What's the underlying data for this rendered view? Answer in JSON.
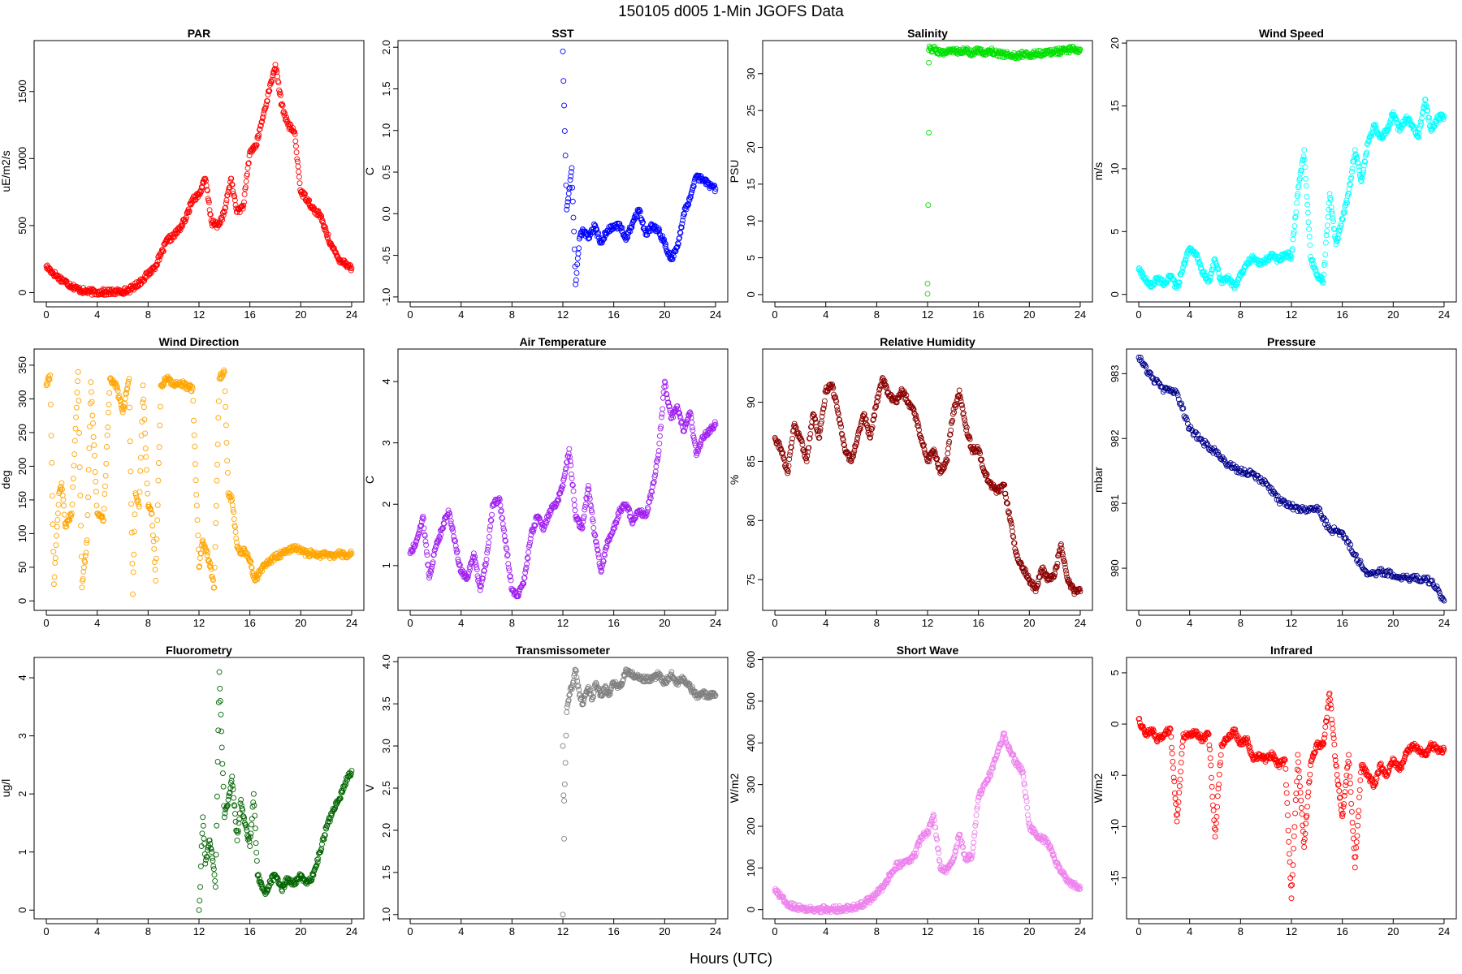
{
  "figure": {
    "title": "150105   d005   1-Min  JGOFS Data",
    "xlabel": "Hours (UTC)"
  },
  "chart_data": [
    {
      "type": "scatter",
      "title": "PAR",
      "ylabel": "uE/m2/s",
      "color": "#ff0000",
      "xlim": [
        -0.96,
        24.96
      ],
      "ylim": [
        -70,
        1880
      ],
      "x_ticks": [
        0,
        4,
        8,
        12,
        16,
        20,
        24
      ],
      "y_ticks": [
        0,
        500,
        1000,
        1500
      ],
      "x": [
        0,
        0.5,
        1,
        1.5,
        2,
        2.5,
        3,
        3.5,
        4,
        4.5,
        5,
        5.5,
        6,
        6.5,
        7,
        7.5,
        8,
        8.5,
        9,
        9.5,
        10,
        10.5,
        11,
        11.5,
        12,
        12.5,
        13,
        13.5,
        14,
        14.5,
        15,
        15.5,
        16,
        16.5,
        17,
        17.5,
        18,
        18.5,
        19,
        19.5,
        20,
        20.5,
        21,
        21.5,
        22,
        22.5,
        23,
        23.5,
        24
      ],
      "y": [
        195,
        150,
        110,
        80,
        50,
        25,
        10,
        5,
        3,
        3,
        3,
        5,
        10,
        20,
        50,
        90,
        140,
        190,
        280,
        390,
        420,
        480,
        560,
        700,
        730,
        850,
        520,
        500,
        600,
        850,
        600,
        650,
        1050,
        1100,
        1300,
        1500,
        1700,
        1400,
        1250,
        1200,
        750,
        700,
        620,
        580,
        450,
        330,
        250,
        220,
        180
      ]
    },
    {
      "type": "scatter",
      "title": "SST",
      "ylabel": "C",
      "color": "#0000ff",
      "xlim": [
        -0.96,
        24.96
      ],
      "ylim": [
        -1.06,
        2.08
      ],
      "x_ticks": [
        0,
        4,
        8,
        12,
        16,
        20,
        24
      ],
      "y_ticks": [
        -1.0,
        -0.5,
        0.0,
        0.5,
        1.0,
        1.5,
        2.0
      ],
      "x": [
        12.0,
        12.1,
        12.2,
        12.3,
        12.5,
        12.7,
        13.0,
        13.3,
        13.6,
        14.0,
        14.5,
        15.0,
        15.5,
        16.0,
        16.5,
        17.0,
        17.5,
        18.0,
        18.5,
        19.0,
        19.5,
        20.0,
        20.5,
        21.0,
        21.5,
        22.0,
        22.5,
        23.0,
        23.5,
        24.0
      ],
      "y": [
        1.95,
        1.3,
        0.7,
        0.05,
        0.3,
        0.55,
        -0.85,
        -0.3,
        -0.2,
        -0.3,
        -0.15,
        -0.35,
        -0.2,
        -0.15,
        -0.15,
        -0.3,
        -0.1,
        0.05,
        -0.25,
        -0.15,
        -0.2,
        -0.35,
        -0.55,
        -0.4,
        0.0,
        0.2,
        0.45,
        0.4,
        0.35,
        0.3
      ]
    },
    {
      "type": "scatter",
      "title": "Salinity",
      "ylabel": "PSU",
      "color": "#00e000",
      "xlim": [
        -0.96,
        24.96
      ],
      "ylim": [
        -1.0,
        34.5
      ],
      "x_ticks": [
        0,
        4,
        8,
        12,
        16,
        20,
        24
      ],
      "y_ticks": [
        0,
        5,
        10,
        15,
        20,
        25,
        30
      ],
      "x": [
        12.0,
        12.0,
        12.1,
        12.1,
        12.1,
        12.2,
        12.5,
        13,
        13.5,
        14,
        14.5,
        15,
        15.5,
        16,
        16.5,
        17,
        17.5,
        18,
        18.5,
        19,
        19.5,
        20,
        20.5,
        21,
        21.5,
        22,
        22.5,
        23,
        23.5,
        24
      ],
      "y": [
        0.1,
        1.5,
        22.0,
        31.5,
        33.2,
        33.4,
        33.3,
        33.0,
        32.8,
        33.2,
        32.9,
        33.3,
        32.7,
        33.2,
        32.9,
        33.1,
        32.8,
        32.6,
        32.5,
        32.5,
        32.6,
        32.6,
        32.7,
        32.8,
        32.9,
        33.0,
        33.1,
        33.2,
        33.3,
        33.3
      ]
    },
    {
      "type": "scatter",
      "title": "Wind Speed",
      "ylabel": "m/s",
      "color": "#00ffff",
      "xlim": [
        -0.96,
        24.96
      ],
      "ylim": [
        -0.6,
        20.2
      ],
      "x_ticks": [
        0,
        4,
        8,
        12,
        16,
        20,
        24
      ],
      "y_ticks": [
        0,
        5,
        10,
        15,
        20
      ],
      "x": [
        0,
        0.5,
        1,
        1.5,
        2,
        2.5,
        3,
        3.5,
        4,
        4.5,
        5,
        5.5,
        6,
        6.5,
        7,
        7.5,
        8,
        8.5,
        9,
        9.5,
        10,
        10.5,
        11,
        11.5,
        12,
        12.5,
        13,
        13.5,
        14,
        14.5,
        15,
        15.5,
        16,
        16.5,
        17,
        17.5,
        18,
        18.5,
        19,
        19.5,
        20,
        20.5,
        21,
        21.5,
        22,
        22.5,
        23,
        23.5,
        24
      ],
      "y": [
        2.0,
        1.2,
        0.6,
        1.3,
        0.8,
        1.5,
        0.5,
        2.2,
        3.7,
        3.2,
        1.8,
        1.0,
        2.8,
        0.9,
        1.3,
        0.6,
        1.5,
        2.5,
        3.0,
        2.4,
        2.7,
        3.1,
        2.7,
        3.2,
        3.0,
        8.0,
        11.5,
        3.0,
        1.5,
        1.0,
        8.0,
        4.0,
        6.0,
        8.0,
        11.5,
        9.0,
        12.0,
        13.5,
        12.5,
        13.0,
        14.5,
        13.0,
        14.0,
        13.5,
        12.5,
        15.5,
        13.0,
        14.0,
        14.2
      ]
    },
    {
      "type": "scatter",
      "title": "Wind Direction",
      "ylabel": "deg",
      "color": "#ffa500",
      "xlim": [
        -0.96,
        24.96
      ],
      "ylim": [
        -14,
        374
      ],
      "x_ticks": [
        0,
        4,
        8,
        12,
        16,
        20,
        24
      ],
      "y_ticks": [
        0,
        50,
        100,
        150,
        200,
        250,
        300,
        350
      ],
      "x": [
        0.0,
        0.3,
        0.6,
        1.0,
        1.2,
        1.5,
        2.0,
        2.5,
        2.8,
        3.2,
        3.5,
        4.0,
        4.5,
        5.0,
        5.5,
        6.0,
        6.5,
        6.8,
        7.0,
        7.3,
        7.6,
        8.0,
        8.3,
        8.6,
        9.0,
        9.5,
        10.0,
        10.5,
        11.0,
        11.5,
        12.0,
        12.3,
        12.8,
        13.2,
        13.6,
        14.0,
        14.3,
        14.6,
        15.0,
        15.3,
        15.6,
        16.0,
        16.4,
        16.8,
        17.2,
        17.6,
        18.0,
        18.5,
        19.0,
        19.5,
        20.0,
        20.5,
        21.0,
        21.5,
        22.0,
        22.5,
        23.0,
        23.5,
        24.0
      ],
      "y": [
        320,
        335,
        25,
        160,
        175,
        110,
        130,
        340,
        20,
        90,
        325,
        130,
        120,
        330,
        320,
        280,
        330,
        10,
        160,
        140,
        320,
        140,
        130,
        30,
        320,
        330,
        320,
        325,
        318,
        315,
        50,
        90,
        60,
        20,
        330,
        340,
        160,
        150,
        80,
        70,
        75,
        60,
        30,
        45,
        55,
        60,
        65,
        70,
        75,
        80,
        75,
        70,
        72,
        68,
        70,
        66,
        70,
        68,
        70
      ]
    },
    {
      "type": "scatter",
      "title": "Air Temperature",
      "ylabel": "C",
      "color": "#a020f0",
      "xlim": [
        -0.96,
        24.96
      ],
      "ylim": [
        0.27,
        4.53
      ],
      "x_ticks": [
        0,
        4,
        8,
        12,
        16,
        20,
        24
      ],
      "y_ticks": [
        1,
        2,
        3,
        4
      ],
      "x": [
        0,
        0.5,
        1,
        1.5,
        2,
        2.5,
        3,
        3.5,
        4,
        4.5,
        5,
        5.5,
        6,
        6.5,
        7,
        7.5,
        8,
        8.5,
        9,
        9.5,
        10,
        10.5,
        11,
        11.5,
        12,
        12.5,
        13,
        13.5,
        14,
        14.5,
        15,
        15.5,
        16,
        16.5,
        17,
        17.5,
        18,
        18.5,
        19,
        19.5,
        20,
        20.5,
        21,
        21.5,
        22,
        22.5,
        23,
        23.5,
        24
      ],
      "y": [
        1.2,
        1.4,
        1.8,
        0.8,
        1.3,
        1.6,
        1.9,
        1.4,
        0.9,
        0.8,
        1.2,
        0.6,
        1.1,
        2.0,
        2.1,
        1.4,
        0.6,
        0.5,
        0.8,
        1.5,
        1.8,
        1.6,
        1.9,
        2.0,
        2.3,
        2.9,
        1.8,
        1.6,
        2.3,
        1.5,
        0.9,
        1.4,
        1.6,
        1.9,
        2.0,
        1.7,
        1.9,
        1.8,
        2.2,
        2.8,
        4.0,
        3.4,
        3.6,
        3.2,
        3.5,
        2.8,
        3.1,
        3.2,
        3.3
      ]
    },
    {
      "type": "scatter",
      "title": "Relative Humidity",
      "ylabel": "%",
      "color": "#8b0000",
      "xlim": [
        -0.96,
        24.96
      ],
      "ylim": [
        72.4,
        94.5
      ],
      "x_ticks": [
        0,
        4,
        8,
        12,
        16,
        20,
        24
      ],
      "y_ticks": [
        75,
        80,
        85,
        90
      ],
      "x": [
        0,
        0.5,
        1,
        1.5,
        2,
        2.5,
        3,
        3.5,
        4,
        4.5,
        5,
        5.5,
        6,
        6.5,
        7,
        7.5,
        8,
        8.5,
        9,
        9.5,
        10,
        10.5,
        11,
        11.5,
        12,
        12.5,
        13,
        13.5,
        14,
        14.5,
        15,
        15.5,
        16,
        16.5,
        17,
        17.5,
        18,
        18.5,
        19,
        19.5,
        20,
        20.5,
        21,
        21.5,
        22,
        22.5,
        23,
        23.5,
        24
      ],
      "y": [
        87,
        86,
        84,
        88,
        87,
        85,
        89,
        87,
        91,
        91.5,
        89,
        86,
        85,
        87,
        89,
        87,
        90,
        92,
        90.5,
        90,
        91,
        90,
        89,
        87,
        85,
        86,
        84,
        85,
        89,
        91,
        88,
        86,
        86,
        84,
        83,
        82.5,
        83,
        80,
        77,
        76,
        75,
        74,
        76,
        75,
        75.5,
        78,
        75,
        74,
        74
      ]
    },
    {
      "type": "scatter",
      "title": "Pressure",
      "ylabel": "mbar",
      "color": "#00008b",
      "xlim": [
        -0.96,
        24.96
      ],
      "ylim": [
        979.35,
        983.38
      ],
      "x_ticks": [
        0,
        4,
        8,
        12,
        16,
        20,
        24
      ],
      "y_ticks": [
        980,
        981,
        982,
        983
      ],
      "x": [
        0,
        1,
        2,
        3,
        4,
        5,
        6,
        7,
        8,
        9,
        10,
        11,
        12,
        13,
        14,
        15,
        16,
        17,
        18,
        19,
        20,
        21,
        22,
        23,
        24
      ],
      "y": [
        983.25,
        982.95,
        982.75,
        982.7,
        982.15,
        981.95,
        981.8,
        981.6,
        981.5,
        981.45,
        981.3,
        981.05,
        980.95,
        980.9,
        980.95,
        980.6,
        980.55,
        980.2,
        979.9,
        979.95,
        979.9,
        979.85,
        979.85,
        979.8,
        979.5
      ]
    },
    {
      "type": "scatter",
      "title": "Fluorometry",
      "ylabel": "ug/l",
      "color": "#006400",
      "xlim": [
        -0.96,
        24.96
      ],
      "ylim": [
        -0.15,
        4.35
      ],
      "x_ticks": [
        0,
        4,
        8,
        12,
        16,
        20,
        24
      ],
      "y_ticks": [
        0,
        1,
        2,
        3,
        4
      ],
      "x": [
        12.0,
        12.1,
        12.2,
        12.3,
        12.5,
        12.8,
        13.0,
        13.3,
        13.6,
        13.8,
        14.0,
        14.3,
        14.6,
        15.0,
        15.3,
        15.6,
        16.0,
        16.3,
        16.6,
        17.0,
        17.3,
        17.6,
        18.0,
        18.5,
        19.0,
        19.5,
        20.0,
        20.5,
        21.0,
        21.5,
        22.0,
        22.5,
        23.0,
        23.5,
        24.0
      ],
      "y": [
        0.0,
        0.4,
        1.1,
        1.6,
        0.8,
        1.2,
        1.0,
        0.4,
        4.1,
        2.8,
        1.6,
        1.9,
        2.3,
        1.2,
        1.9,
        1.5,
        1.1,
        2.0,
        0.6,
        0.4,
        0.3,
        0.5,
        0.6,
        0.35,
        0.55,
        0.45,
        0.6,
        0.45,
        0.6,
        1.0,
        1.4,
        1.7,
        1.9,
        2.2,
        2.4
      ]
    },
    {
      "type": "scatter",
      "title": "Transmissometer",
      "ylabel": "V",
      "color": "#808080",
      "xlim": [
        -0.96,
        24.96
      ],
      "ylim": [
        0.95,
        4.05
      ],
      "x_ticks": [
        0,
        4,
        8,
        12,
        16,
        20,
        24
      ],
      "y_ticks": [
        1.0,
        1.5,
        2.0,
        2.5,
        3.0,
        3.5,
        4.0
      ],
      "x": [
        12.0,
        12.0,
        12.1,
        12.1,
        12.2,
        12.3,
        12.5,
        12.8,
        13.0,
        13.3,
        13.6,
        14.0,
        14.3,
        14.6,
        15.0,
        15.3,
        15.6,
        16.0,
        16.5,
        17.0,
        17.5,
        18.0,
        18.5,
        19.0,
        19.5,
        20.0,
        20.5,
        21.0,
        21.5,
        22.0,
        22.5,
        23.0,
        23.5,
        24.0
      ],
      "y": [
        1.0,
        3.0,
        1.9,
        2.35,
        2.8,
        3.4,
        3.6,
        3.75,
        3.9,
        3.6,
        3.5,
        3.7,
        3.55,
        3.75,
        3.6,
        3.7,
        3.6,
        3.75,
        3.7,
        3.9,
        3.85,
        3.8,
        3.8,
        3.8,
        3.85,
        3.75,
        3.85,
        3.75,
        3.8,
        3.7,
        3.6,
        3.62,
        3.6,
        3.6
      ]
    },
    {
      "type": "scatter",
      "title": "Short Wave",
      "ylabel": "W/m2",
      "color": "#ee82ee",
      "xlim": [
        -0.96,
        24.96
      ],
      "ylim": [
        -22,
        605
      ],
      "x_ticks": [
        0,
        4,
        8,
        12,
        16,
        20,
        24
      ],
      "y_ticks": [
        0,
        100,
        200,
        300,
        400,
        500,
        600
      ],
      "x": [
        0,
        0.5,
        1,
        1.5,
        2,
        2.5,
        3,
        3.5,
        4,
        4.5,
        5,
        5.5,
        6,
        6.5,
        7,
        7.5,
        8,
        8.5,
        9,
        9.5,
        10,
        10.5,
        11,
        11.5,
        12,
        12.5,
        13,
        13.5,
        14,
        14.5,
        15,
        15.5,
        16,
        16.5,
        17,
        17.5,
        18,
        18.5,
        19,
        19.5,
        20,
        20.5,
        21,
        21.5,
        22,
        22.5,
        23,
        23.5,
        24
      ],
      "y": [
        45,
        30,
        15,
        8,
        4,
        2,
        1,
        1,
        1,
        1,
        1,
        2,
        4,
        8,
        15,
        25,
        40,
        55,
        80,
        105,
        110,
        115,
        130,
        175,
        185,
        225,
        100,
        95,
        120,
        180,
        120,
        130,
        270,
        300,
        330,
        380,
        420,
        380,
        350,
        330,
        200,
        180,
        170,
        160,
        120,
        90,
        70,
        60,
        50
      ]
    },
    {
      "type": "scatter",
      "title": "Infrared",
      "ylabel": "W/m2",
      "color": "#ff0000",
      "xlim": [
        -0.96,
        24.96
      ],
      "ylim": [
        -19.0,
        6.5
      ],
      "x_ticks": [
        0,
        4,
        8,
        12,
        16,
        20,
        24
      ],
      "y_ticks": [
        -15,
        -10,
        -5,
        0,
        5
      ],
      "x": [
        0,
        0.5,
        1,
        1.5,
        2,
        2.5,
        3,
        3.5,
        4,
        4.5,
        5,
        5.5,
        6,
        6.5,
        7,
        7.5,
        8,
        8.5,
        9,
        9.5,
        10,
        10.5,
        11,
        11.5,
        12,
        12.5,
        13,
        13.5,
        14,
        14.5,
        15,
        15.5,
        16,
        16.5,
        17,
        17.5,
        18,
        18.5,
        19,
        19.5,
        20,
        20.5,
        21,
        21.5,
        22,
        22.5,
        23,
        23.5,
        24
      ],
      "y": [
        0.5,
        -1.0,
        -0.5,
        -1.5,
        -1.0,
        -0.5,
        -9.5,
        -1.0,
        -1.2,
        -0.8,
        -1.5,
        -1.0,
        -11.0,
        -2.0,
        -1.5,
        -0.5,
        -2.0,
        -1.5,
        -3.5,
        -3.0,
        -3.5,
        -3.0,
        -4.0,
        -3.5,
        -17.0,
        -3.0,
        -12.0,
        -4.0,
        -2.0,
        -2.0,
        3.0,
        -4.0,
        -9.0,
        -3.0,
        -14.0,
        -4.0,
        -5.0,
        -6.0,
        -4.0,
        -5.0,
        -3.5,
        -4.5,
        -3.0,
        -2.0,
        -2.5,
        -3.0,
        -2.0,
        -2.5,
        -2.5
      ]
    }
  ]
}
